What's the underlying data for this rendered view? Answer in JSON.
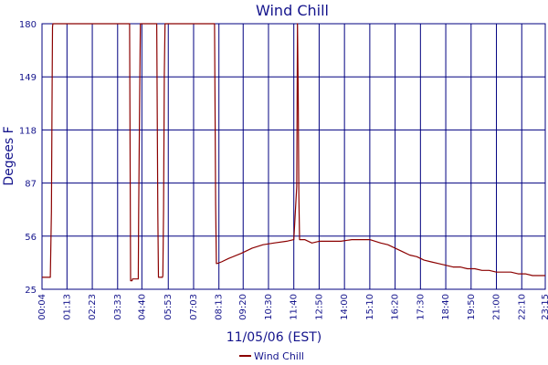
{
  "chart_data": {
    "type": "line",
    "title": "Wind Chill",
    "xlabel": "11/05/06 (EST)",
    "ylabel": "Degees F",
    "ylim": [
      25,
      180
    ],
    "yticks": [
      25,
      56,
      87,
      118,
      149,
      180
    ],
    "xlim": [
      "00:04",
      "23:15"
    ],
    "xticks": [
      "00:04",
      "01:13",
      "02:23",
      "03:33",
      "04:40",
      "05:53",
      "07:03",
      "08:13",
      "09:20",
      "10:30",
      "11:40",
      "12:50",
      "14:00",
      "15:10",
      "16:20",
      "17:30",
      "18:40",
      "19:50",
      "21:00",
      "22:10",
      "23:15"
    ],
    "grid": true,
    "legend": "bottom-center",
    "colors": {
      "series": "#8b0000",
      "grid": "#000080",
      "axis_text": "#14148c"
    },
    "series": [
      {
        "name": "Wind Chill",
        "x": [
          "00:04",
          "00:27",
          "00:30",
          "00:32",
          "00:33",
          "00:34",
          "04:04",
          "04:06",
          "04:08",
          "04:09",
          "04:11",
          "04:13",
          "04:14",
          "04:30",
          "04:31",
          "04:34",
          "04:36",
          "04:37",
          "05:20",
          "05:21",
          "05:24",
          "05:26",
          "05:28",
          "05:29",
          "05:37",
          "05:38",
          "05:40",
          "05:42",
          "05:44",
          "05:45",
          "08:00",
          "08:01",
          "08:04",
          "08:06",
          "08:08",
          "08:20",
          "08:40",
          "09:15",
          "09:45",
          "10:15",
          "10:45",
          "11:20",
          "11:40",
          "11:48",
          "11:50",
          "11:52",
          "11:54",
          "11:56",
          "12:00",
          "12:10",
          "12:30",
          "12:50",
          "13:20",
          "13:50",
          "14:20",
          "14:50",
          "15:10",
          "15:40",
          "16:00",
          "16:20",
          "16:40",
          "17:00",
          "17:20",
          "17:40",
          "18:00",
          "18:20",
          "18:40",
          "19:00",
          "19:20",
          "19:40",
          "20:00",
          "20:20",
          "20:40",
          "21:00",
          "21:20",
          "21:40",
          "22:00",
          "22:20",
          "22:40",
          "23:00",
          "23:15"
        ],
        "y": [
          32,
          32,
          70,
          145,
          178,
          180,
          180,
          180,
          70,
          30,
          30,
          30,
          31,
          31,
          68,
          143,
          180,
          180,
          180,
          180,
          69,
          32,
          32,
          32,
          32,
          33,
          72,
          150,
          180,
          180,
          180,
          180,
          75,
          40,
          40,
          41,
          43,
          46,
          49,
          51,
          52,
          53,
          54,
          85,
          180,
          140,
          80,
          54,
          54,
          54,
          52,
          53,
          53,
          53,
          54,
          54,
          54,
          52,
          51,
          49,
          47,
          45,
          44,
          42,
          41,
          40,
          39,
          38,
          38,
          37,
          37,
          36,
          36,
          35,
          35,
          35,
          34,
          34,
          33,
          33,
          33
        ]
      }
    ]
  }
}
